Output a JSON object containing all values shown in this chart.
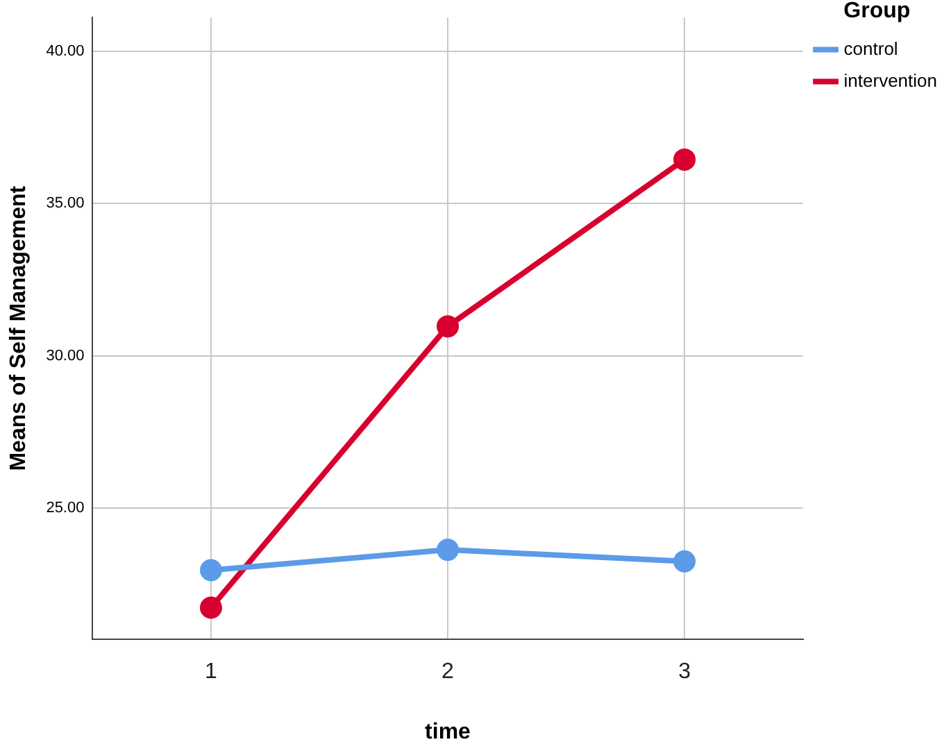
{
  "chart_data": {
    "type": "line",
    "xlabel": "time",
    "ylabel": "Means of Self Management",
    "legend_title": "Group",
    "categories": [
      "1",
      "2",
      "3"
    ],
    "series": [
      {
        "name": "control",
        "color": "#5b9be8",
        "values": [
          22.97,
          23.64,
          23.26
        ]
      },
      {
        "name": "intervention",
        "color": "#d8002e",
        "values": [
          21.74,
          30.97,
          36.44
        ]
      }
    ],
    "ylim": [
      20.7,
      41.1
    ],
    "yticks": [
      {
        "value": 25,
        "label": "25.00"
      },
      {
        "value": 30,
        "label": "30.00"
      },
      {
        "value": 35,
        "label": "35.00"
      },
      {
        "value": 40,
        "label": "40.00"
      }
    ],
    "grid": true,
    "legend": "top right",
    "marker": "circle",
    "line_style": "solid"
  }
}
